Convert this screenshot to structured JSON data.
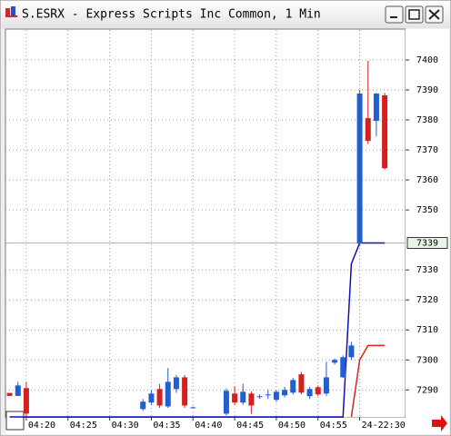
{
  "chart_data": {
    "type": "candlestick",
    "title": "S.ESRX - Express Scripts Inc Common, 1 Min",
    "categories": [
      null,
      null,
      "04:20",
      null,
      null,
      null,
      null,
      "04:25",
      null,
      null,
      null,
      null,
      "04:30",
      null,
      null,
      null,
      null,
      "04:35",
      null,
      null,
      null,
      null,
      "04:40",
      null,
      null,
      null,
      null,
      "04:45",
      null,
      null,
      null,
      null,
      "04:50",
      null,
      null,
      null,
      null,
      "04:55",
      null,
      null,
      null,
      null,
      "24-22:30",
      null,
      null,
      null,
      null,
      null
    ],
    "open": [
      7289,
      7288,
      7290.6,
      null,
      null,
      null,
      null,
      null,
      null,
      null,
      null,
      null,
      null,
      null,
      null,
      null,
      7283.6,
      7285.8,
      7290.3,
      7284.5,
      7290.3,
      7294.2,
      7284.2,
      null,
      null,
      null,
      7282.1,
      7288.8,
      7285.8,
      7288.8,
      7287.9,
      7288.5,
      7286.7,
      7288.2,
      7289.1,
      7295.2,
      7287.9,
      7290.9,
      7288.8,
      7299.1,
      7294.2,
      7300.9,
      7338.8,
      7380.6,
      7379.7,
      7388.2,
      null,
      null
    ],
    "high": [
      7289,
      7292.7,
      7292.7,
      null,
      null,
      null,
      null,
      null,
      null,
      null,
      null,
      null,
      null,
      null,
      null,
      null,
      7287,
      7290,
      7292,
      7297.3,
      7295,
      7295,
      7284.5,
      null,
      null,
      null,
      7290.5,
      7291.2,
      7292,
      7289.5,
      7288.5,
      7290,
      7290,
      7291,
      7294,
      7296,
      7291,
      7291.5,
      7299.4,
      7300.5,
      7301.5,
      7306,
      7390,
      7399.7,
      7389,
      7389,
      null,
      null
    ],
    "low": [
      7288,
      7288,
      7281.2,
      null,
      null,
      null,
      null,
      null,
      null,
      null,
      null,
      null,
      null,
      null,
      null,
      null,
      7283,
      7285,
      7284,
      7284,
      7289,
      7284,
      7283.8,
      null,
      null,
      null,
      7281.5,
      7285,
      7285,
      7282,
      7287,
      7287,
      7286,
      7287.5,
      7288.5,
      7288.5,
      7287,
      7288,
      7288,
      7298.5,
      7294,
      7300,
      7338,
      7372,
      7374.5,
      7363.5,
      null,
      null
    ],
    "close": [
      7288,
      7291.5,
      7282.1,
      null,
      null,
      null,
      null,
      null,
      null,
      null,
      null,
      null,
      null,
      null,
      null,
      null,
      7286.1,
      7288.8,
      7284.8,
      7292.7,
      7294.2,
      7284.8,
      7284.2,
      null,
      null,
      null,
      7289.7,
      7285.8,
      7289.4,
      7284.8,
      7287.9,
      7288.5,
      7289.4,
      7290,
      7293.3,
      7289.1,
      7290.3,
      7288.5,
      7294.2,
      7300,
      7300.9,
      7304.8,
      7388.8,
      7373,
      7388.8,
      7363.9,
      null,
      null
    ],
    "up_color": "#1f5fd0",
    "down_color": "#d42020",
    "lines": [
      {
        "color": "#1010b8",
        "values": [
          7281,
          7281,
          7281,
          7281,
          7281,
          7281,
          7281,
          7281,
          7281,
          7281,
          7281,
          7281,
          7281,
          7281,
          7281,
          7281,
          7281,
          7281,
          7281,
          7281,
          7281,
          7281,
          7281,
          7281,
          7281,
          7281,
          7281,
          7281,
          7281,
          7281,
          7281,
          7281,
          7281,
          7281,
          7281,
          7281,
          7281,
          7281,
          7281,
          7281,
          7281,
          7332,
          7339,
          7339,
          7339,
          7339,
          null,
          null
        ]
      },
      {
        "color": "#e02020",
        "values": [
          null,
          null,
          null,
          null,
          null,
          null,
          null,
          null,
          null,
          null,
          null,
          null,
          null,
          null,
          null,
          null,
          null,
          null,
          null,
          null,
          null,
          null,
          null,
          null,
          null,
          null,
          null,
          null,
          null,
          null,
          null,
          null,
          null,
          null,
          null,
          null,
          null,
          null,
          null,
          null,
          null,
          7281,
          7300,
          7304.8,
          7304.8,
          7304.8,
          null,
          null
        ]
      }
    ],
    "last_price": 7339,
    "ylim": [
      7281,
      7410
    ],
    "yticks": [
      7290,
      7300,
      7310,
      7320,
      7330,
      7350,
      7360,
      7370,
      7380,
      7390,
      7400
    ],
    "grid": true
  }
}
